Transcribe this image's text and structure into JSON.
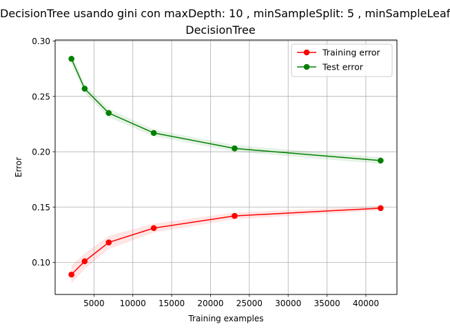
{
  "figure": {
    "suptitle": "DecisionTree usando gini con maxDepth: 10 , minSampleSplit: 5 , minSampleLeaf",
    "title": "DecisionTree"
  },
  "chart_data": {
    "type": "line",
    "title": "DecisionTree",
    "xlabel": "Training examples",
    "ylabel": "Error",
    "xlim": [
      0,
      44000
    ],
    "ylim": [
      0.071,
      0.301
    ],
    "xticks": [
      5000,
      10000,
      15000,
      20000,
      25000,
      30000,
      35000,
      40000
    ],
    "yticks": [
      0.1,
      0.15,
      0.2,
      0.25,
      0.3
    ],
    "xtick_labels": [
      "5000",
      "10000",
      "15000",
      "20000",
      "25000",
      "30000",
      "35000",
      "40000"
    ],
    "ytick_labels": [
      "0.10",
      "0.15",
      "0.20",
      "0.25",
      "0.30"
    ],
    "grid": true,
    "legend_position": "top-right",
    "x": [
      2100,
      3800,
      6900,
      12700,
      23100,
      41900
    ],
    "series": [
      {
        "name": "Training error",
        "color": "#ff0000",
        "values": [
          0.089,
          0.101,
          0.118,
          0.131,
          0.142,
          0.149
        ],
        "band_lower": [
          0.081,
          0.094,
          0.112,
          0.127,
          0.139,
          0.147
        ],
        "band_upper": [
          0.097,
          0.108,
          0.124,
          0.135,
          0.145,
          0.151
        ]
      },
      {
        "name": "Test error",
        "color": "#008000",
        "values": [
          0.284,
          0.257,
          0.235,
          0.217,
          0.203,
          0.192
        ],
        "band_lower": [
          0.279,
          0.253,
          0.231,
          0.214,
          0.2,
          0.189
        ],
        "band_upper": [
          0.289,
          0.261,
          0.239,
          0.22,
          0.206,
          0.195
        ]
      }
    ]
  }
}
